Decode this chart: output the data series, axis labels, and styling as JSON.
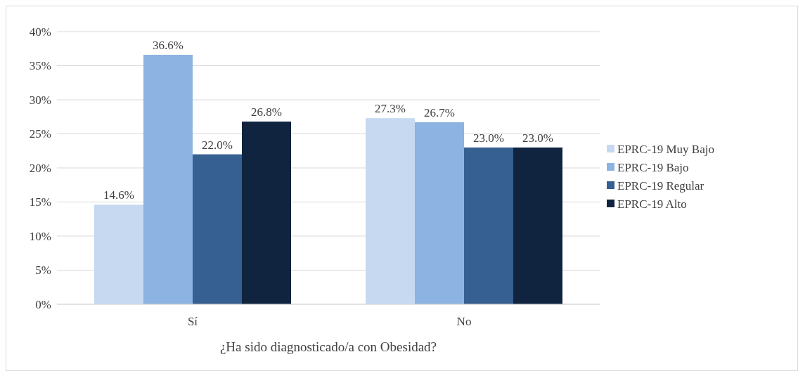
{
  "chart_data": {
    "type": "bar",
    "xlabel": "¿Ha sido diagnosticado/a con Obesidad?",
    "categories": [
      "Sí",
      "No"
    ],
    "series": [
      {
        "name": "EPRC-19 Muy Bajo",
        "color": "#c6d9f0",
        "values": [
          14.6,
          27.3
        ],
        "value_labels": [
          "14.6%",
          "27.3%"
        ]
      },
      {
        "name": "EPRC-19 Bajo",
        "color": "#8db3e2",
        "values": [
          36.6,
          26.7
        ],
        "value_labels": [
          "36.6%",
          "26.7%"
        ]
      },
      {
        "name": "EPRC-19 Regular",
        "color": "#366092",
        "values": [
          22.0,
          23.0
        ],
        "value_labels": [
          "22.0%",
          "23.0%"
        ]
      },
      {
        "name": "EPRC-19 Alto",
        "color": "#10243f",
        "values": [
          26.8,
          23.0
        ],
        "value_labels": [
          "26.8%",
          "23.0%"
        ]
      }
    ],
    "ylim": [
      0,
      40
    ],
    "yticks": [
      {
        "value": 0,
        "label": "0%"
      },
      {
        "value": 5,
        "label": "5%"
      },
      {
        "value": 10,
        "label": "10%"
      },
      {
        "value": 15,
        "label": "15%"
      },
      {
        "value": 20,
        "label": "20%"
      },
      {
        "value": 25,
        "label": "25%"
      },
      {
        "value": 30,
        "label": "30%"
      },
      {
        "value": 35,
        "label": "35%"
      },
      {
        "value": 40,
        "label": "40%"
      }
    ],
    "grid": "y",
    "legend": "right"
  }
}
